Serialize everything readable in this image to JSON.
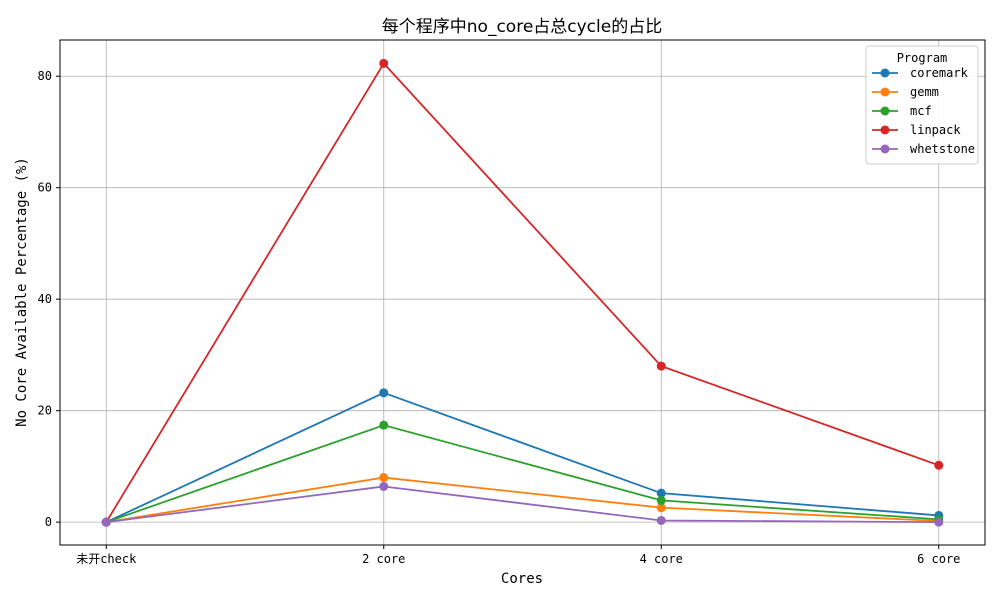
{
  "chart_data": {
    "type": "line",
    "title": "每个程序中no_core占总cycle的占比",
    "xlabel": "Cores",
    "ylabel": "No Core Available Percentage (%)",
    "categories": [
      "未开check",
      "2 core",
      "4 core",
      "6 core"
    ],
    "ylim": [
      -4.1,
      86.5
    ],
    "yticks": [
      0,
      20,
      40,
      60,
      80
    ],
    "grid": true,
    "legend": {
      "title": "Program",
      "position": "top-right"
    },
    "series": [
      {
        "name": "coremark",
        "color": "#1f77b4",
        "values": [
          0,
          23.2,
          5.2,
          1.2
        ]
      },
      {
        "name": "gemm",
        "color": "#ff7f0e",
        "values": [
          0,
          8.0,
          2.6,
          0.2
        ]
      },
      {
        "name": "mcf",
        "color": "#2ca02c",
        "values": [
          0,
          17.4,
          3.9,
          0.5
        ]
      },
      {
        "name": "linpack",
        "color": "#d62728",
        "values": [
          0,
          82.3,
          28.0,
          10.2
        ]
      },
      {
        "name": "whetstone",
        "color": "#9467bd",
        "values": [
          0,
          6.4,
          0.3,
          0.0
        ]
      }
    ]
  }
}
